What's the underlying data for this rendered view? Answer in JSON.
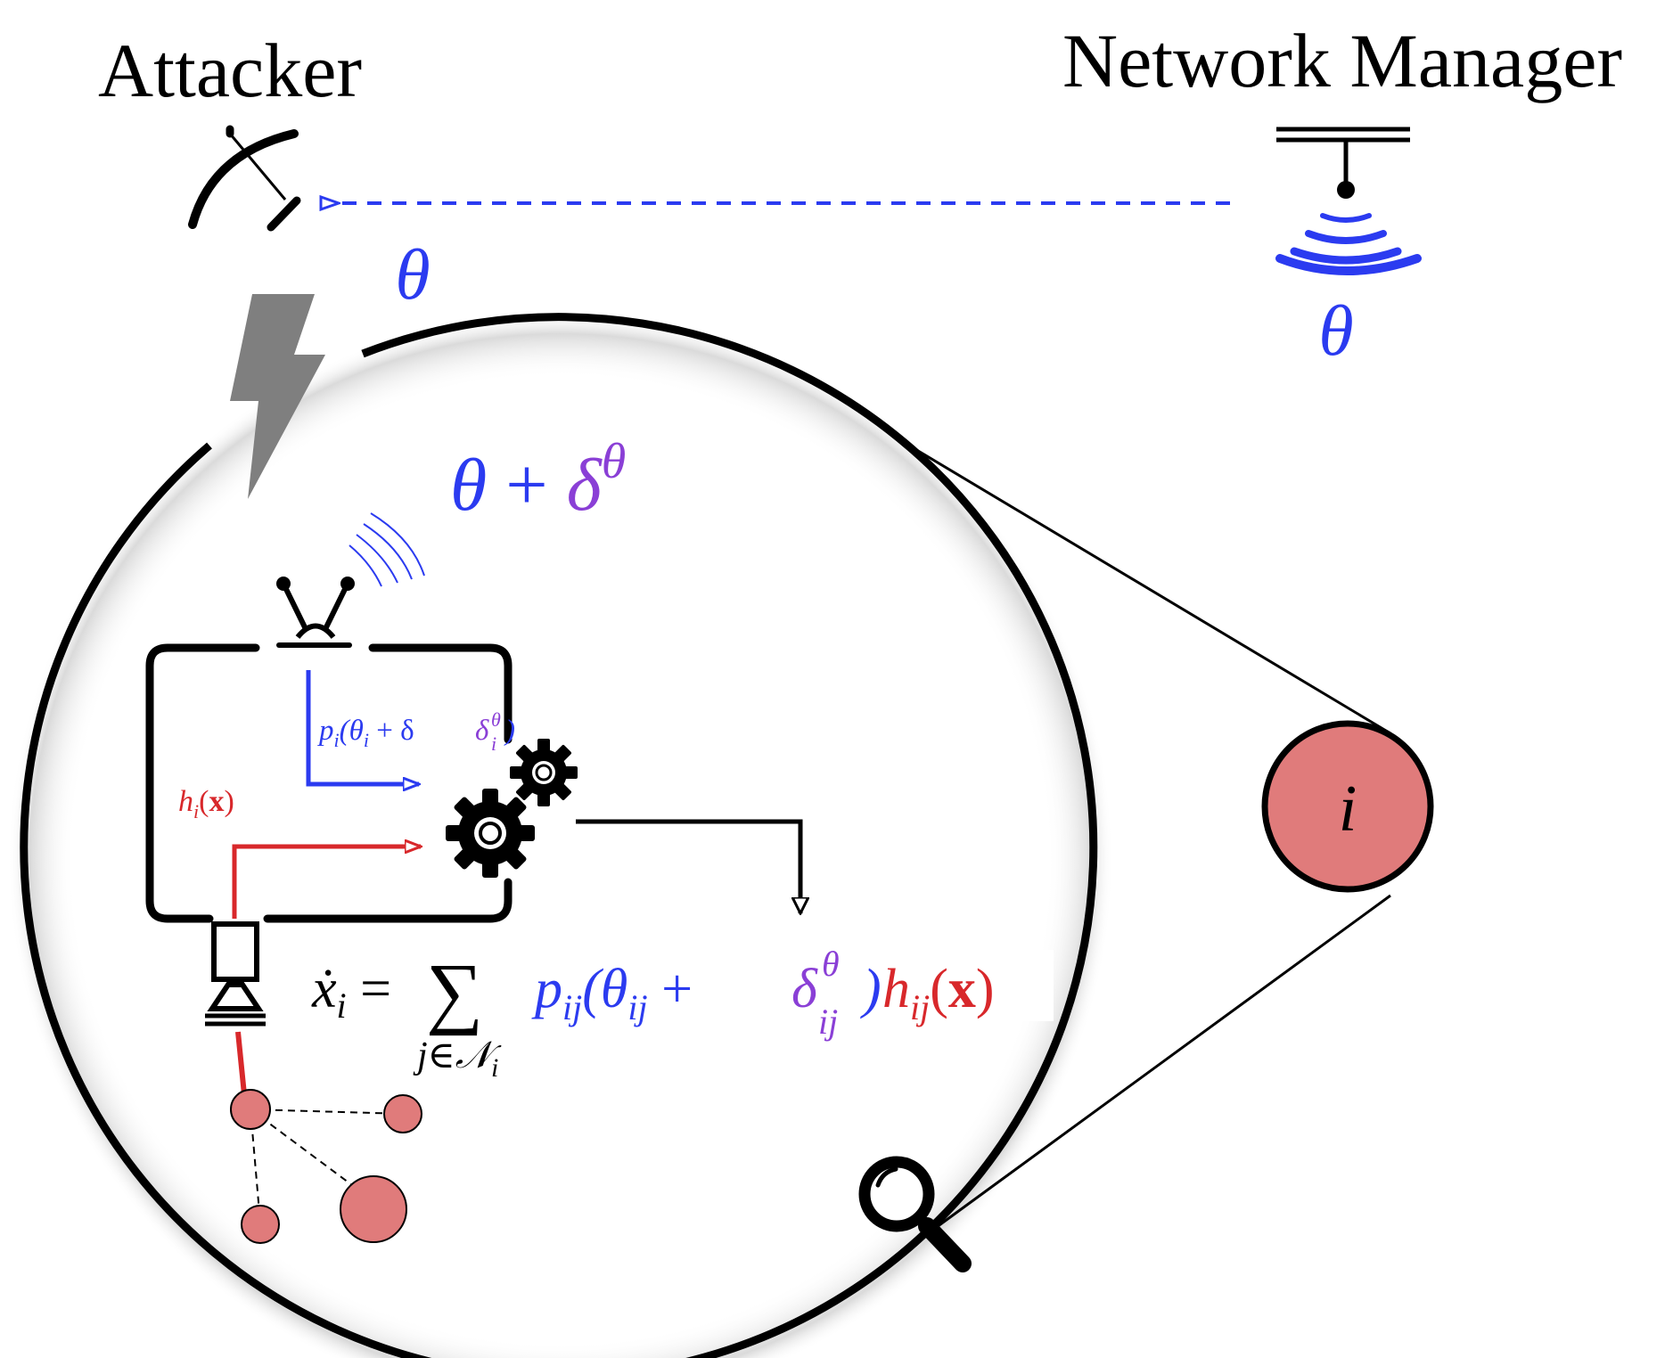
{
  "labels": {
    "attacker": "Attacker",
    "network_manager": "Network Manager",
    "theta_attacker": "θ",
    "theta_manager": "θ",
    "perturbed_theta": {
      "base": "θ + δ",
      "superscript": "θ"
    },
    "node_label": "i",
    "controller_input_p": {
      "base": "p",
      "sub": "i",
      "open": "(θ",
      "sub2": "i",
      "plus": " + δ",
      "delta_sup": "θ",
      "delta_sub": "i",
      "close": ")"
    },
    "controller_input_h": {
      "base": "h",
      "sub": "i",
      "open": "(",
      "bold": "x",
      "close": ")"
    },
    "equation": {
      "lhs": "ẋ",
      "lhs_sub": "i",
      "equals": " = ",
      "sum": "∑",
      "sum_under": "j∈𝒩",
      "sum_under_sub": "i",
      "p": "p",
      "p_sub": "ij",
      "open": "(θ",
      "theta_sub": "ij",
      "plus": " + ",
      "delta": "δ",
      "delta_sup": "θ",
      "delta_sub": "ij",
      "close": ")",
      "h": "h",
      "h_sub": "ij",
      "x_open": "(",
      "x": "x",
      "x_close": ")"
    }
  },
  "colors": {
    "blue": "#2b3bf0",
    "purple": "#8a3fd6",
    "red": "#d8282b",
    "node_fill": "#e07b7b",
    "gray_bolt": "#7f7f7f",
    "black": "#000000"
  },
  "icons": [
    "satellite-dish-icon",
    "antenna-tower-icon",
    "lightning-bolt-icon",
    "robot-antenna-icon",
    "gear-icon",
    "sensor-icon",
    "magnifier-icon",
    "signal-waves-icon"
  ]
}
